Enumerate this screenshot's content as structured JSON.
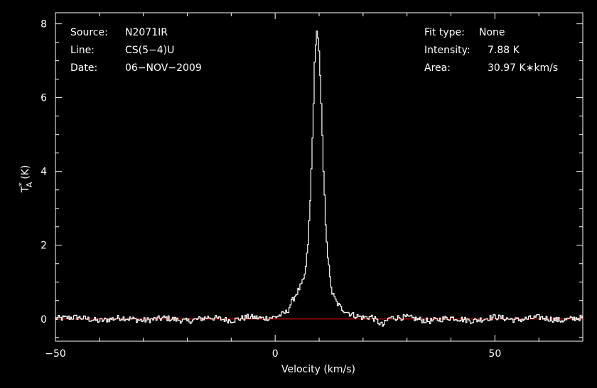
{
  "chart_data": {
    "type": "line",
    "xlabel": "Velocity (km/s)",
    "ylabel_main": "T",
    "ylabel_sup": "*",
    "ylabel_sub": "A",
    "ylabel_unit": "(K)",
    "xlim": [
      -50,
      70
    ],
    "ylim": [
      -0.6,
      8.3
    ],
    "xticks": [
      -50,
      0,
      50
    ],
    "yticks": [
      0,
      2,
      4,
      6,
      8
    ],
    "xtick_labels": [
      "−50",
      "0",
      "50"
    ],
    "ytick_labels": [
      "0",
      "2",
      "4",
      "6",
      "8"
    ],
    "baseline": 0,
    "series": [
      {
        "color": "#ffffff",
        "x": [
          -49,
          -45,
          -40,
          -35,
          -30,
          -25,
          -20,
          -15,
          -10,
          -6,
          -3,
          0,
          1.5,
          2.5,
          3.0,
          3.5,
          4.5,
          5.5,
          6.5,
          7.0,
          7.5,
          8.0,
          8.5,
          9.0,
          9.5,
          10.0,
          10.5,
          11.0,
          11.5,
          12.0,
          12.5,
          13.0,
          14.0,
          15.0,
          16.0,
          17.0,
          18.0,
          20.0,
          22.0,
          24.5,
          26.0,
          30.0,
          35.0,
          40.0,
          45.0,
          50.0,
          55.0,
          60.0,
          65.0,
          69.0
        ],
        "y": [
          0.02,
          0.05,
          -0.05,
          0.04,
          -0.04,
          0.03,
          -0.06,
          0.05,
          -0.04,
          0.06,
          0.02,
          0.05,
          0.12,
          0.18,
          0.25,
          0.4,
          0.62,
          0.82,
          1.05,
          1.4,
          2.05,
          3.2,
          4.9,
          6.9,
          7.88,
          7.3,
          5.8,
          4.0,
          2.6,
          1.7,
          1.1,
          0.7,
          0.45,
          0.3,
          0.22,
          0.15,
          0.1,
          0.04,
          0.06,
          -0.18,
          0.03,
          0.05,
          -0.06,
          0.04,
          -0.05,
          0.06,
          -0.03,
          0.05,
          -0.04,
          0.03
        ]
      }
    ],
    "annotations_left": [
      {
        "label": "Source:",
        "value": "N2071IR"
      },
      {
        "label": "Line:",
        "value": "CS(5−4)U"
      },
      {
        "label": "Date:",
        "value": "06−NOV−2009"
      }
    ],
    "annotations_right": [
      {
        "label": "Fit type:",
        "value": "None"
      },
      {
        "label": "Intensity:",
        "value": "7.88 K"
      },
      {
        "label": "Area:",
        "value": "30.97 K∗km/s"
      }
    ],
    "grid": false,
    "colors": {
      "background": "#000000",
      "foreground": "#ffffff",
      "baseline": "#ff0000"
    }
  }
}
